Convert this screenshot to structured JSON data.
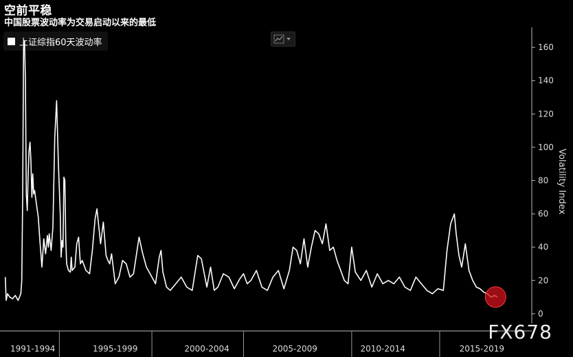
{
  "title": "空前平稳",
  "subtitle": "中国股票波动率为交易启动以来的最低",
  "legend": {
    "label": "上证综指60天波动率",
    "color": "#ffffff"
  },
  "chart_type_icon": "line-chart-icon",
  "watermark": "FX678",
  "colors": {
    "background": "#000000",
    "line": "#ffffff",
    "highlight": "#d0121b"
  },
  "chart_data": {
    "type": "line",
    "title": "空前平稳",
    "subtitle": "中国股票波动率为交易启动以来的最低",
    "ylabel": "Volatility Index",
    "ylim": [
      -5,
      172
    ],
    "xlim": [
      1990.9,
      2019.65
    ],
    "yticks": [
      0,
      20,
      40,
      60,
      80,
      100,
      120,
      140,
      160
    ],
    "x_period_labels": [
      "1991-1994",
      "1995-1999",
      "2000-2004",
      "2005-2009",
      "2010-2014",
      "2015-2019"
    ],
    "x_period_centers": [
      1992.5,
      1997.0,
      2002.0,
      2006.8,
      2011.6,
      2017.0
    ],
    "x_period_separators": [
      1993.95,
      1999.0,
      2004.0,
      2009.9,
      2014.7
    ],
    "legend_position": "top-left",
    "grid": false,
    "series": [
      {
        "name": "上证综指60天波动率",
        "x": [
          1991.0,
          1991.05,
          1991.12,
          1991.25,
          1991.4,
          1991.55,
          1991.7,
          1991.85,
          1991.9,
          1991.95,
          1992.0,
          1992.05,
          1992.1,
          1992.15,
          1992.2,
          1992.25,
          1992.3,
          1992.35,
          1992.4,
          1992.45,
          1992.5,
          1992.55,
          1992.6,
          1992.7,
          1992.8,
          1992.9,
          1993.0,
          1993.1,
          1993.2,
          1993.3,
          1993.35,
          1993.4,
          1993.5,
          1993.6,
          1993.7,
          1993.8,
          1993.9,
          1994.0,
          1994.05,
          1994.1,
          1994.15,
          1994.2,
          1994.25,
          1994.3,
          1994.35,
          1994.45,
          1994.55,
          1994.6,
          1994.65,
          1994.8,
          1994.9,
          1995.0,
          1995.1,
          1995.2,
          1995.4,
          1995.6,
          1995.75,
          1995.9,
          1996.0,
          1996.2,
          1996.35,
          1996.5,
          1996.6,
          1996.7,
          1996.8,
          1997.0,
          1997.2,
          1997.4,
          1997.6,
          1997.8,
          1998.0,
          1998.3,
          1998.5,
          1998.7,
          1999.0,
          1999.2,
          1999.4,
          1999.5,
          1999.6,
          1999.8,
          2000.0,
          2000.3,
          2000.6,
          2000.9,
          2001.2,
          2001.5,
          2001.7,
          2002.0,
          2002.2,
          2002.4,
          2002.6,
          2002.9,
          2003.2,
          2003.5,
          2003.8,
          2004.0,
          2004.2,
          2004.4,
          2004.7,
          2005.0,
          2005.3,
          2005.6,
          2005.9,
          2006.2,
          2006.5,
          2006.7,
          2006.9,
          2007.1,
          2007.3,
          2007.5,
          2007.7,
          2007.9,
          2008.1,
          2008.3,
          2008.5,
          2008.7,
          2008.9,
          2009.1,
          2009.3,
          2009.5,
          2009.7,
          2009.9,
          2010.1,
          2010.4,
          2010.7,
          2011.0,
          2011.3,
          2011.6,
          2011.9,
          2012.2,
          2012.5,
          2012.8,
          2013.1,
          2013.4,
          2013.7,
          2014.0,
          2014.3,
          2014.6,
          2014.9,
          2015.1,
          2015.3,
          2015.5,
          2015.6,
          2015.75,
          2015.9,
          2016.1,
          2016.3,
          2016.5,
          2016.7,
          2016.9,
          2017.1,
          2017.3,
          2017.5,
          2017.7,
          2017.85
        ],
        "values": [
          22,
          8,
          12,
          10,
          9,
          11,
          8,
          12,
          20,
          70,
          160,
          164,
          140,
          72,
          62,
          84,
          98,
          103,
          92,
          70,
          84,
          72,
          74,
          66,
          58,
          42,
          28,
          45,
          36,
          47,
          40,
          48,
          38,
          52,
          106,
          128,
          90,
          60,
          34,
          44,
          40,
          82,
          80,
          45,
          30,
          26,
          25,
          34,
          26,
          28,
          42,
          46,
          30,
          32,
          26,
          24,
          38,
          57,
          63,
          42,
          55,
          35,
          32,
          30,
          36,
          18,
          22,
          32,
          30,
          22,
          24,
          46,
          36,
          28,
          22,
          18,
          34,
          38,
          25,
          16,
          14,
          18,
          22,
          16,
          14,
          35,
          33,
          16,
          28,
          14,
          16,
          24,
          22,
          15,
          21,
          24,
          18,
          20,
          26,
          16,
          14,
          22,
          26,
          15,
          26,
          40,
          38,
          30,
          45,
          28,
          40,
          50,
          48,
          42,
          54,
          38,
          40,
          32,
          26,
          20,
          18,
          40,
          25,
          20,
          26,
          16,
          24,
          18,
          20,
          18,
          22,
          16,
          14,
          22,
          18,
          14,
          12,
          15,
          14,
          38,
          54,
          60,
          48,
          35,
          28,
          42,
          26,
          20,
          16,
          15,
          13,
          12,
          10,
          11,
          10
        ]
      }
    ],
    "annotations": [
      {
        "type": "circle",
        "x": 2017.75,
        "y": 10,
        "label": ""
      }
    ]
  }
}
